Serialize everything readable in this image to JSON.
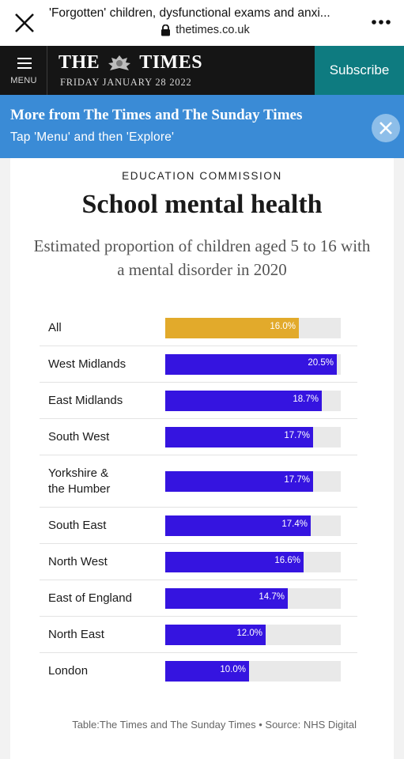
{
  "browser": {
    "page_title": "'Forgotten' children, dysfunctional exams and anxi...",
    "url": "thetimes.co.uk"
  },
  "header": {
    "menu_label": "MENU",
    "masthead_left": "THE",
    "masthead_right": "TIMES",
    "date": "FRIDAY JANUARY 28 2022",
    "subscribe_label": "Subscribe"
  },
  "promo": {
    "title": "More from The Times and The Sunday Times",
    "subtitle": "Tap 'Menu' and then 'Explore'"
  },
  "article": {
    "kicker": "EDUCATION COMMISSION",
    "headline": "School mental health",
    "subhead": "Estimated proportion of children aged 5 to 16 with a mental disorder in 2020",
    "source": "Table:The Times and The Sunday Times • Source: NHS Digital"
  },
  "colors": {
    "highlight": "#e2aa2b",
    "series": "#3514e0",
    "track": "#e9e9e9",
    "subscribe": "#0e7b80",
    "promo": "#3a8bd6"
  },
  "chart_data": {
    "type": "bar",
    "orientation": "horizontal",
    "categories": [
      "All",
      "West Midlands",
      "East Midlands",
      "South West",
      "Yorkshire & the Humber",
      "South East",
      "North West",
      "East of England",
      "North East",
      "London"
    ],
    "values": [
      16.0,
      20.5,
      18.7,
      17.7,
      17.7,
      17.4,
      16.6,
      14.7,
      12.0,
      10.0
    ],
    "value_labels": [
      "16.0%",
      "20.5%",
      "18.7%",
      "17.7%",
      "17.7%",
      "17.4%",
      "16.6%",
      "14.7%",
      "12.0%",
      "10.0%"
    ],
    "xlim": [
      0,
      21
    ],
    "highlight_category": "All",
    "title": "School mental health",
    "subtitle": "Estimated proportion of children aged 5 to 16 with a mental disorder in 2020"
  }
}
